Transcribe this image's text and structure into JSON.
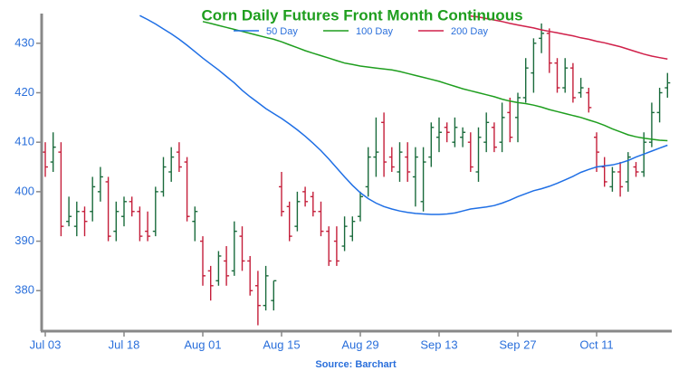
{
  "chart_data": {
    "type": "ohlc",
    "title": "Corn Daily Futures Front Month Continuous",
    "source": "Source: Barchart",
    "categories": [
      "Jul 03",
      null,
      null,
      null,
      null,
      null,
      null,
      null,
      null,
      null,
      "Jul 18",
      null,
      null,
      null,
      null,
      null,
      null,
      null,
      null,
      null,
      "Aug 01",
      null,
      null,
      null,
      null,
      null,
      null,
      null,
      null,
      null,
      "Aug 15",
      null,
      null,
      null,
      null,
      null,
      null,
      null,
      null,
      null,
      "Aug 29",
      null,
      null,
      null,
      null,
      null,
      null,
      null,
      null,
      null,
      "Sep 13",
      null,
      null,
      null,
      null,
      null,
      null,
      null,
      null,
      null,
      "Sep 27",
      null,
      null,
      null,
      null,
      null,
      null,
      null,
      null,
      null,
      "Oct 11",
      null,
      null,
      null,
      null,
      null,
      null,
      null,
      null,
      null
    ],
    "open": [
      408,
      406,
      408,
      394,
      393,
      396,
      396,
      400,
      402,
      392,
      395,
      398,
      396,
      392,
      392,
      400,
      404,
      408,
      406,
      394,
      390,
      384,
      382,
      386,
      384,
      391,
      386,
      381,
      377,
      378,
      401,
      397,
      393,
      400,
      399,
      396,
      392,
      390,
      389,
      391,
      395,
      401,
      407,
      414,
      407,
      404,
      407,
      403,
      398,
      407,
      411,
      413,
      410,
      411,
      410,
      404,
      410,
      413,
      410,
      416,
      415,
      419,
      424,
      431,
      432,
      426,
      421,
      425,
      420,
      420,
      411,
      405,
      401,
      404,
      402,
      405,
      404,
      410,
      416,
      421
    ],
    "high": [
      410,
      412,
      410,
      399,
      398,
      397,
      403,
      405,
      403,
      398,
      399,
      399,
      397,
      396,
      401,
      407,
      409,
      410,
      407,
      397,
      391,
      385,
      388,
      389,
      394,
      393,
      387,
      384,
      385,
      382,
      404,
      398,
      400,
      401,
      400,
      398,
      393,
      393,
      395,
      395,
      400,
      409,
      415,
      416,
      409,
      410,
      410,
      409,
      409,
      414,
      415,
      414,
      415,
      413,
      412,
      413,
      416,
      414,
      418,
      419,
      420,
      427,
      431,
      434,
      433,
      427,
      427,
      426,
      423,
      421,
      412,
      407,
      405,
      406,
      408,
      406,
      412,
      418,
      421,
      424
    ],
    "low": [
      403,
      404,
      391,
      393,
      391,
      391,
      394,
      398,
      390,
      390,
      393,
      395,
      390,
      390,
      391,
      399,
      402,
      404,
      394,
      390,
      381,
      378,
      381,
      381,
      383,
      384,
      379,
      373,
      376,
      376,
      395,
      390,
      392,
      397,
      395,
      391,
      385,
      385,
      388,
      390,
      394,
      399,
      403,
      403,
      404,
      402,
      402,
      397,
      396,
      405,
      408,
      410,
      409,
      409,
      404,
      402,
      408,
      408,
      408,
      410,
      410,
      418,
      420,
      428,
      424,
      420,
      420,
      418,
      419,
      416,
      404,
      401,
      400,
      399,
      400,
      403,
      403,
      409,
      414,
      419
    ],
    "close": [
      405,
      409,
      393,
      395,
      396,
      394,
      401,
      403,
      391,
      396,
      398,
      396,
      391,
      391,
      400,
      405,
      407,
      405,
      395,
      396,
      383,
      381,
      387,
      383,
      392,
      386,
      380,
      377,
      383,
      382,
      396,
      391,
      398,
      398,
      396,
      392,
      386,
      386,
      393,
      394,
      399,
      407,
      408,
      406,
      405,
      408,
      404,
      407,
      406,
      413,
      412,
      412,
      413,
      412,
      405,
      411,
      414,
      409,
      415,
      411,
      419,
      425,
      430,
      432,
      426,
      421,
      425,
      419,
      421,
      417,
      408,
      402,
      404,
      401,
      407,
      404,
      410,
      416,
      420,
      422
    ],
    "up_color": "#1a6b3c",
    "down_color": "#c41e3a",
    "series": [
      {
        "name": "50 Day",
        "color": "#1f6fe5",
        "values": [
          null,
          null,
          null,
          null,
          null,
          null,
          null,
          null,
          null,
          null,
          null,
          null,
          435.6,
          434.8,
          433.9,
          432.9,
          431.9,
          430.8,
          429.6,
          428.3,
          427,
          425.8,
          424.6,
          423.3,
          422,
          420.5,
          419.2,
          418,
          416.8,
          415.8,
          414.8,
          413.7,
          412.5,
          411.2,
          409.8,
          408.3,
          406.6,
          404.8,
          403,
          401.3,
          399.8,
          398.6,
          397.7,
          397,
          396.5,
          396.1,
          395.8,
          395.6,
          395.5,
          395.4,
          395.4,
          395.5,
          395.7,
          396.1,
          396.5,
          396.7,
          396.9,
          397.2,
          397.7,
          398.3,
          399,
          399.6,
          400.2,
          400.6,
          401.1,
          401.7,
          402.4,
          403.1,
          403.9,
          404.5,
          405,
          405.2,
          405.4,
          405.8,
          406.3,
          407,
          407.6,
          408.2,
          408.8,
          409.4
        ]
      },
      {
        "name": "100 Day",
        "color": "#1e9e1e",
        "values": [
          null,
          null,
          null,
          null,
          null,
          null,
          null,
          null,
          null,
          null,
          null,
          null,
          null,
          null,
          null,
          null,
          null,
          null,
          null,
          null,
          434.4,
          434,
          433.6,
          433.2,
          432.8,
          432.4,
          432,
          431.6,
          431.2,
          430.8,
          430.3,
          429.7,
          429.1,
          428.5,
          428,
          427.5,
          427,
          426.5,
          426,
          425.7,
          425.4,
          425.2,
          425,
          424.8,
          424.6,
          424.3,
          423.9,
          423.5,
          423.1,
          422.7,
          422.3,
          421.8,
          421.3,
          420.8,
          420.4,
          420,
          419.6,
          419.2,
          418.7,
          418.3,
          418,
          417.8,
          417.5,
          417.1,
          416.6,
          416.2,
          415.8,
          415.4,
          415,
          414.5,
          414,
          413.4,
          412.7,
          412.1,
          411.5,
          411.1,
          410.8,
          410.6,
          410.4,
          410.3
        ]
      },
      {
        "name": "200 Day",
        "color": "#d0204a",
        "values": [
          null,
          null,
          null,
          null,
          null,
          null,
          null,
          null,
          null,
          null,
          null,
          null,
          null,
          null,
          null,
          null,
          null,
          null,
          null,
          null,
          null,
          null,
          null,
          null,
          null,
          null,
          null,
          null,
          null,
          null,
          null,
          null,
          null,
          null,
          null,
          null,
          null,
          null,
          null,
          null,
          null,
          null,
          null,
          null,
          null,
          null,
          null,
          null,
          null,
          null,
          null,
          null,
          null,
          null,
          435.5,
          435.3,
          435,
          434.7,
          434.4,
          434,
          433.7,
          433.4,
          433.1,
          432.7,
          432.4,
          432.1,
          431.8,
          431.5,
          431.1,
          430.8,
          430.4,
          430.1,
          429.7,
          429.3,
          428.8,
          428.3,
          427.8,
          427.4,
          427.1,
          426.8
        ]
      }
    ],
    "ylim": [
      372,
      436
    ],
    "yticks": [
      380,
      390,
      400,
      410,
      420,
      430
    ],
    "legend": "top",
    "grid": false
  }
}
